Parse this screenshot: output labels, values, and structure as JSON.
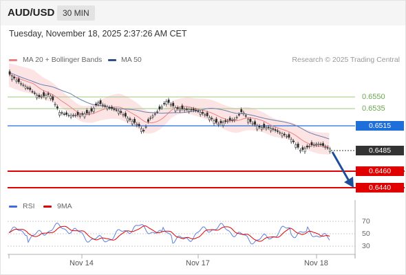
{
  "header": {
    "symbol": "AUD/USD",
    "timeframe": "30 MIN"
  },
  "datetime": "Tuesday, November 18, 2025 2:37:26 AM CET",
  "legend": {
    "ma20": {
      "label": "MA 20 + Bollinger Bands",
      "color": "#f08080"
    },
    "ma50": {
      "label": "MA 50",
      "color": "#2f4f8f"
    },
    "credit": "Research © 2025 Trading Central"
  },
  "levels": [
    {
      "value": "0.6550",
      "kind": "resistance-line",
      "color": "#8fbf6f"
    },
    {
      "value": "0.6535",
      "kind": "resistance-line",
      "color": "#8fbf6f"
    },
    {
      "value": "0.6515",
      "kind": "pivot",
      "color": "#1e6fd9"
    },
    {
      "value": "0.6485",
      "kind": "last-price",
      "color": "#333333"
    },
    {
      "value": "0.6460",
      "kind": "support",
      "color": "#e00000"
    },
    {
      "value": "0.6440",
      "kind": "support",
      "color": "#e00000"
    }
  ],
  "rsi_panel": {
    "legend": [
      {
        "label": "RSI",
        "color": "#4169e1"
      },
      {
        "label": "9MA",
        "color": "#e00000"
      }
    ],
    "ticks": [
      "70",
      "50",
      "30"
    ]
  },
  "x_axis": {
    "labels": [
      "Nov 14",
      "Nov 17",
      "Nov 18"
    ]
  },
  "icons": {
    "forecast_arrow": "down-arrow-icon"
  }
}
